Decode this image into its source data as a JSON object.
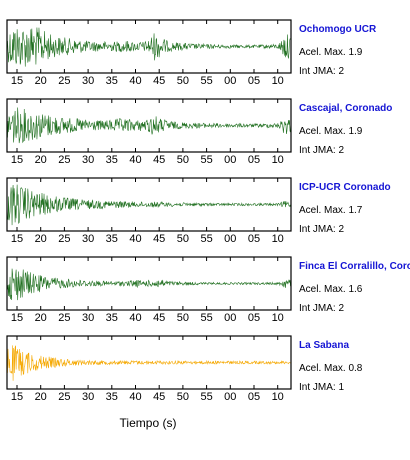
{
  "chart_data": {
    "type": "line",
    "xlabel": "Tiempo (s)",
    "x_tick_labels": [
      "15",
      "20",
      "25",
      "30",
      "35",
      "40",
      "45",
      "50",
      "55",
      "00",
      "05",
      "10"
    ],
    "series": [
      {
        "name": "Ochomogo UCR",
        "accel_label": "Acel. Max. 1.9",
        "jma_label": "Int JMA: 2",
        "color": "#1f6f1f",
        "peak_norm": 1.0,
        "envelope": [
          [
            0,
            0.55
          ],
          [
            2,
            0.95
          ],
          [
            5,
            0.85
          ],
          [
            8,
            0.9
          ],
          [
            11,
            0.75
          ],
          [
            15,
            0.45
          ],
          [
            20,
            0.35
          ],
          [
            25,
            0.25
          ],
          [
            30,
            0.2
          ],
          [
            35,
            0.2
          ],
          [
            39,
            0.25
          ],
          [
            42,
            0.18
          ],
          [
            46,
            0.22
          ],
          [
            48,
            0.6
          ],
          [
            50,
            0.45
          ],
          [
            53,
            0.2
          ],
          [
            60,
            0.12
          ],
          [
            70,
            0.08
          ],
          [
            80,
            0.06
          ],
          [
            89,
            0.1
          ],
          [
            91,
            0.55
          ],
          [
            93,
            0.45
          ]
        ]
      },
      {
        "name": "Cascajal, Coronado",
        "accel_label": "Acel. Max. 1.9",
        "jma_label": "Int JMA: 2",
        "color": "#1f6f1f",
        "peak_norm": 1.0,
        "envelope": [
          [
            0,
            0.6
          ],
          [
            2,
            0.8
          ],
          [
            5,
            0.7
          ],
          [
            8,
            0.65
          ],
          [
            12,
            0.5
          ],
          [
            18,
            0.35
          ],
          [
            25,
            0.25
          ],
          [
            32,
            0.2
          ],
          [
            38,
            0.3
          ],
          [
            42,
            0.22
          ],
          [
            46,
            0.25
          ],
          [
            48,
            0.45
          ],
          [
            50,
            0.3
          ],
          [
            55,
            0.15
          ],
          [
            65,
            0.1
          ],
          [
            80,
            0.07
          ],
          [
            89,
            0.1
          ],
          [
            91,
            0.4
          ],
          [
            93,
            0.3
          ]
        ]
      },
      {
        "name": "ICP-UCR Coronado",
        "accel_label": "Acel. Max. 1.7",
        "jma_label": "Int JMA: 2",
        "color": "#1f6f1f",
        "peak_norm": 1.0,
        "envelope": [
          [
            0,
            0.7
          ],
          [
            2,
            0.95
          ],
          [
            5,
            0.75
          ],
          [
            8,
            0.6
          ],
          [
            12,
            0.45
          ],
          [
            18,
            0.3
          ],
          [
            25,
            0.2
          ],
          [
            35,
            0.15
          ],
          [
            45,
            0.1
          ],
          [
            48,
            0.12
          ],
          [
            55,
            0.08
          ],
          [
            70,
            0.05
          ],
          [
            89,
            0.05
          ],
          [
            91,
            0.15
          ],
          [
            93,
            0.1
          ]
        ]
      },
      {
        "name": "Finca El Corralillo, Coronado",
        "accel_label": "Acel. Max. 1.6",
        "jma_label": "Int JMA: 2",
        "color": "#1f6f1f",
        "peak_norm": 0.9,
        "envelope": [
          [
            0,
            0.55
          ],
          [
            2,
            0.9
          ],
          [
            5,
            0.7
          ],
          [
            8,
            0.5
          ],
          [
            12,
            0.35
          ],
          [
            18,
            0.22
          ],
          [
            25,
            0.15
          ],
          [
            35,
            0.1
          ],
          [
            40,
            0.12
          ],
          [
            42,
            0.18
          ],
          [
            45,
            0.12
          ],
          [
            50,
            0.2
          ],
          [
            53,
            0.1
          ],
          [
            65,
            0.05
          ],
          [
            89,
            0.05
          ],
          [
            91,
            0.25
          ],
          [
            93,
            0.15
          ]
        ]
      },
      {
        "name": "La Sabana",
        "accel_label": "Acel. Max. 0.8",
        "jma_label": "Int JMA: 1",
        "color": "#f5a800",
        "peak_norm": 0.9,
        "envelope": [
          [
            0,
            0.7
          ],
          [
            2,
            0.85
          ],
          [
            5,
            0.6
          ],
          [
            8,
            0.45
          ],
          [
            12,
            0.3
          ],
          [
            18,
            0.18
          ],
          [
            25,
            0.12
          ],
          [
            35,
            0.09
          ],
          [
            50,
            0.08
          ],
          [
            70,
            0.07
          ],
          [
            93,
            0.06
          ]
        ]
      }
    ]
  }
}
